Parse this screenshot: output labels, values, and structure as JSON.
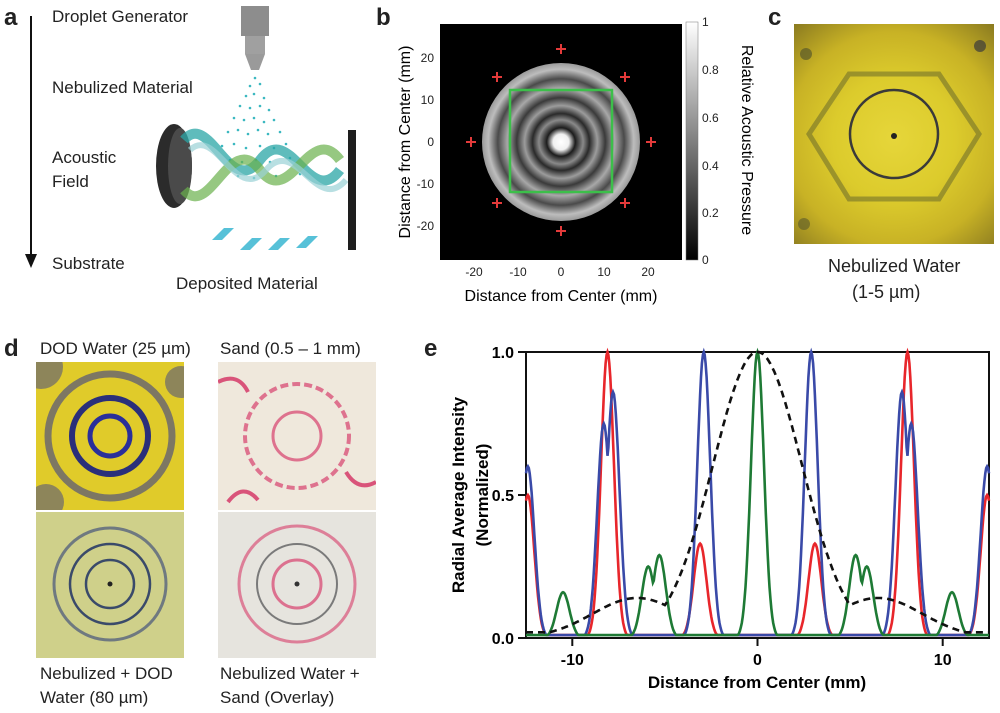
{
  "panels": {
    "a": {
      "label": "a",
      "steps": [
        "Droplet Generator",
        "Nebulized Material",
        "Acoustic",
        "Field",
        "Substrate"
      ],
      "deposited": "Deposited Material"
    },
    "b": {
      "label": "b",
      "ylabel": "Distance from Center (mm)",
      "xlabel": "Distance from Center (mm)",
      "xticks": [
        "-20",
        "-10",
        "0",
        "10",
        "20"
      ],
      "yticks": [
        "20",
        "10",
        "0",
        "-10",
        "-20"
      ],
      "colorbar_label": "Relative Acoustic Pressure",
      "colorbar_ticks": [
        "1",
        "0.8",
        "0.6",
        "0.4",
        "0.2",
        "0"
      ]
    },
    "c": {
      "label": "c",
      "caption_line1": "Nebulized Water",
      "caption_line2": "(1-5 µm)"
    },
    "d": {
      "label": "d",
      "top_left": "DOD Water (25 µm)",
      "top_right": "Sand (0.5 – 1 mm)",
      "bottom_left_1": "Nebulized + DOD",
      "bottom_left_2": "Water (80 µm)",
      "bottom_right_1": "Nebulized Water +",
      "bottom_right_2": "Sand (Overlay)"
    },
    "e": {
      "label": "e"
    }
  },
  "chart_data": {
    "type": "line",
    "title": "",
    "xlabel": "Distance from Center (mm)",
    "ylabel": "Radial Average Intensity (Normalized)",
    "xlim": [
      -12.5,
      12.5
    ],
    "ylim": [
      0,
      1.0
    ],
    "xticks": [
      -10,
      0,
      10
    ],
    "xtick_labels": [
      "-10",
      "0",
      "10"
    ],
    "yticks": [
      0,
      0.5,
      1
    ],
    "ytick_labels": [
      "0.0",
      "0.5",
      "1.0"
    ],
    "series": [
      {
        "name": "red",
        "color": "#e8262b",
        "peaks": [
          [
            -12.4,
            0.5
          ],
          [
            -8.1,
            1.0
          ],
          [
            -3.1,
            0.33
          ],
          [
            3.1,
            0.33
          ],
          [
            8.1,
            1.0
          ],
          [
            12.4,
            0.5
          ]
        ]
      },
      {
        "name": "blue",
        "color": "#3a4aa8",
        "peaks": [
          [
            -12.4,
            0.6
          ],
          [
            -7.8,
            0.86
          ],
          [
            -8.3,
            0.75
          ],
          [
            -2.9,
            1.0
          ],
          [
            2.9,
            1.0
          ],
          [
            7.8,
            0.86
          ],
          [
            8.3,
            0.75
          ],
          [
            12.4,
            0.6
          ]
        ]
      },
      {
        "name": "green",
        "color": "#1e7a35",
        "peaks": [
          [
            -10.5,
            0.16
          ],
          [
            -5.9,
            0.25
          ],
          [
            -5.3,
            0.29
          ],
          [
            0,
            1.0
          ],
          [
            5.3,
            0.29
          ],
          [
            5.9,
            0.25
          ],
          [
            10.5,
            0.16
          ]
        ]
      },
      {
        "name": "dashed",
        "color": "#111111",
        "style": "dashed",
        "peaks": [
          [
            -6.5,
            0.14
          ],
          [
            0,
            1.0
          ],
          [
            6.5,
            0.14
          ]
        ]
      }
    ]
  },
  "colors": {
    "yellow": "#d9c62e",
    "red_marker": "#e33a3a",
    "green_box": "#3cbf4a"
  }
}
